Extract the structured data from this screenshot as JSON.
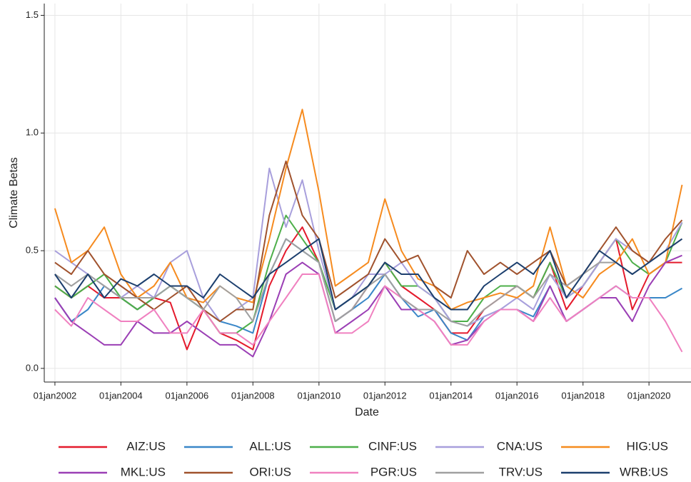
{
  "chart_data": {
    "type": "line",
    "x_label": "Date",
    "y_label": "Climate Betas",
    "grid": true,
    "legend": "bottom",
    "xlim": [
      "2001-09-05",
      "2021-04-10"
    ],
    "xticks": [
      {
        "value": "2002-01-01",
        "label": "01jan2002"
      },
      {
        "value": "2004-01-01",
        "label": "01jan2004"
      },
      {
        "value": "2006-01-01",
        "label": "01jan2006"
      },
      {
        "value": "2008-01-01",
        "label": "01jan2008"
      },
      {
        "value": "2010-01-01",
        "label": "01jan2010"
      },
      {
        "value": "2012-01-01",
        "label": "01jan2012"
      },
      {
        "value": "2014-01-01",
        "label": "01jan2014"
      },
      {
        "value": "2016-01-01",
        "label": "01jan2016"
      },
      {
        "value": "2018-01-01",
        "label": "01jan2018"
      },
      {
        "value": "2020-01-01",
        "label": "01jan2020"
      }
    ],
    "ylim": [
      -0.058,
      1.55
    ],
    "yticks": [
      {
        "value": 0,
        "label": "0.0"
      },
      0.5,
      {
        "value": 1,
        "label": "1.0"
      },
      1.5
    ],
    "x": [
      "2002-01-01",
      "2002-07-01",
      "2003-01-01",
      "2003-07-01",
      "2004-01-01",
      "2004-07-01",
      "2005-01-01",
      "2005-07-01",
      "2006-01-01",
      "2006-07-01",
      "2007-01-01",
      "2007-07-01",
      "2008-01-01",
      "2008-07-01",
      "2009-01-01",
      "2009-07-01",
      "2010-01-01",
      "2010-07-01",
      "2011-01-01",
      "2011-07-01",
      "2012-01-01",
      "2012-07-01",
      "2013-01-01",
      "2013-07-01",
      "2014-01-01",
      "2014-07-01",
      "2015-01-01",
      "2015-07-01",
      "2016-01-01",
      "2016-07-01",
      "2017-01-01",
      "2017-07-01",
      "2018-01-01",
      "2018-07-01",
      "2019-01-01",
      "2019-07-01",
      "2020-01-01",
      "2020-07-01",
      "2021-01-01"
    ],
    "series": [
      {
        "name": "AIZ:US",
        "color": "#e41a2c",
        "values": [
          0.35,
          0.3,
          0.35,
          0.3,
          0.3,
          0.25,
          0.3,
          0.28,
          0.08,
          0.25,
          0.15,
          0.12,
          0.08,
          0.35,
          0.5,
          0.6,
          0.45,
          0.2,
          0.25,
          0.35,
          0.45,
          0.35,
          0.3,
          0.25,
          0.15,
          0.15,
          0.25,
          0.3,
          0.35,
          0.3,
          0.45,
          0.25,
          0.35,
          0.45,
          0.55,
          0.25,
          0.4,
          0.45,
          0.45
        ]
      },
      {
        "name": "ALL:US",
        "color": "#3a87c8",
        "values": [
          0.3,
          0.2,
          0.25,
          0.35,
          0.3,
          0.25,
          0.3,
          0.35,
          0.3,
          0.25,
          0.2,
          0.18,
          0.15,
          0.4,
          0.55,
          0.5,
          0.45,
          0.2,
          0.25,
          0.3,
          0.4,
          0.3,
          0.22,
          0.25,
          0.15,
          0.12,
          0.22,
          0.25,
          0.25,
          0.22,
          0.35,
          0.2,
          0.25,
          0.3,
          0.35,
          0.3,
          0.3,
          0.3,
          0.34
        ]
      },
      {
        "name": "CINF:US",
        "color": "#4daf4a",
        "values": [
          0.35,
          0.3,
          0.35,
          0.4,
          0.3,
          0.25,
          0.3,
          0.35,
          0.3,
          0.25,
          0.15,
          0.15,
          0.2,
          0.45,
          0.65,
          0.55,
          0.45,
          0.25,
          0.3,
          0.35,
          0.45,
          0.35,
          0.35,
          0.3,
          0.2,
          0.2,
          0.3,
          0.35,
          0.35,
          0.3,
          0.45,
          0.3,
          0.35,
          0.45,
          0.55,
          0.45,
          0.4,
          0.45,
          0.62
        ]
      },
      {
        "name": "CNA:US",
        "color": "#a89fdc",
        "values": [
          0.5,
          0.45,
          0.4,
          0.35,
          0.3,
          0.35,
          0.3,
          0.45,
          0.5,
          0.3,
          0.2,
          0.25,
          0.3,
          0.85,
          0.6,
          0.8,
          0.5,
          0.25,
          0.3,
          0.4,
          0.4,
          0.45,
          0.35,
          0.3,
          0.2,
          0.18,
          0.22,
          0.25,
          0.3,
          0.25,
          0.4,
          0.3,
          0.35,
          0.45,
          0.55,
          0.5,
          0.45,
          0.5,
          0.62
        ]
      },
      {
        "name": "HIG:US",
        "color": "#f68b1f",
        "values": [
          0.68,
          0.45,
          0.5,
          0.6,
          0.4,
          0.3,
          0.35,
          0.45,
          0.3,
          0.28,
          0.35,
          0.3,
          0.28,
          0.55,
          0.85,
          1.1,
          0.75,
          0.35,
          0.4,
          0.45,
          0.72,
          0.5,
          0.38,
          0.35,
          0.25,
          0.28,
          0.3,
          0.32,
          0.3,
          0.35,
          0.6,
          0.35,
          0.3,
          0.4,
          0.45,
          0.55,
          0.4,
          0.45,
          0.78
        ]
      },
      {
        "name": "MKL:US",
        "color": "#9b3fb5",
        "values": [
          0.3,
          0.2,
          0.15,
          0.1,
          0.1,
          0.2,
          0.15,
          0.15,
          0.2,
          0.15,
          0.1,
          0.1,
          0.05,
          0.2,
          0.4,
          0.45,
          0.4,
          0.15,
          0.2,
          0.25,
          0.35,
          0.25,
          0.25,
          0.2,
          0.1,
          0.12,
          0.2,
          0.25,
          0.25,
          0.2,
          0.35,
          0.2,
          0.25,
          0.3,
          0.3,
          0.2,
          0.35,
          0.45,
          0.48
        ]
      },
      {
        "name": "ORI:US",
        "color": "#a0522d",
        "values": [
          0.45,
          0.4,
          0.5,
          0.4,
          0.35,
          0.3,
          0.25,
          0.3,
          0.35,
          0.25,
          0.2,
          0.25,
          0.25,
          0.65,
          0.88,
          0.65,
          0.55,
          0.3,
          0.35,
          0.4,
          0.55,
          0.45,
          0.48,
          0.35,
          0.3,
          0.5,
          0.4,
          0.45,
          0.4,
          0.45,
          0.5,
          0.35,
          0.4,
          0.5,
          0.6,
          0.5,
          0.45,
          0.55,
          0.63
        ]
      },
      {
        "name": "PGR:US",
        "color": "#f081c0",
        "values": [
          0.25,
          0.18,
          0.3,
          0.25,
          0.2,
          0.2,
          0.25,
          0.15,
          0.15,
          0.25,
          0.15,
          0.15,
          0.1,
          0.2,
          0.3,
          0.4,
          0.4,
          0.15,
          0.15,
          0.2,
          0.35,
          0.3,
          0.25,
          0.2,
          0.1,
          0.1,
          0.2,
          0.25,
          0.25,
          0.2,
          0.3,
          0.2,
          0.25,
          0.3,
          0.35,
          0.3,
          0.3,
          0.2,
          0.07
        ]
      },
      {
        "name": "TRV:US",
        "color": "#a0a0a0",
        "values": [
          0.4,
          0.35,
          0.4,
          0.35,
          0.3,
          0.3,
          0.3,
          0.35,
          0.3,
          0.25,
          0.35,
          0.3,
          0.2,
          0.4,
          0.55,
          0.5,
          0.45,
          0.2,
          0.25,
          0.35,
          0.4,
          0.3,
          0.25,
          0.25,
          0.2,
          0.18,
          0.25,
          0.3,
          0.35,
          0.3,
          0.4,
          0.35,
          0.4,
          0.45,
          0.45,
          0.4,
          0.45,
          0.5,
          0.55
        ]
      },
      {
        "name": "WRB:US",
        "color": "#1c3f6e",
        "values": [
          0.4,
          0.3,
          0.4,
          0.3,
          0.38,
          0.35,
          0.4,
          0.35,
          0.35,
          0.3,
          0.4,
          0.35,
          0.3,
          0.4,
          0.45,
          0.5,
          0.55,
          0.25,
          0.3,
          0.35,
          0.45,
          0.4,
          0.4,
          0.3,
          0.25,
          0.25,
          0.35,
          0.4,
          0.45,
          0.4,
          0.5,
          0.3,
          0.4,
          0.5,
          0.45,
          0.4,
          0.45,
          0.5,
          0.55
        ]
      }
    ]
  }
}
